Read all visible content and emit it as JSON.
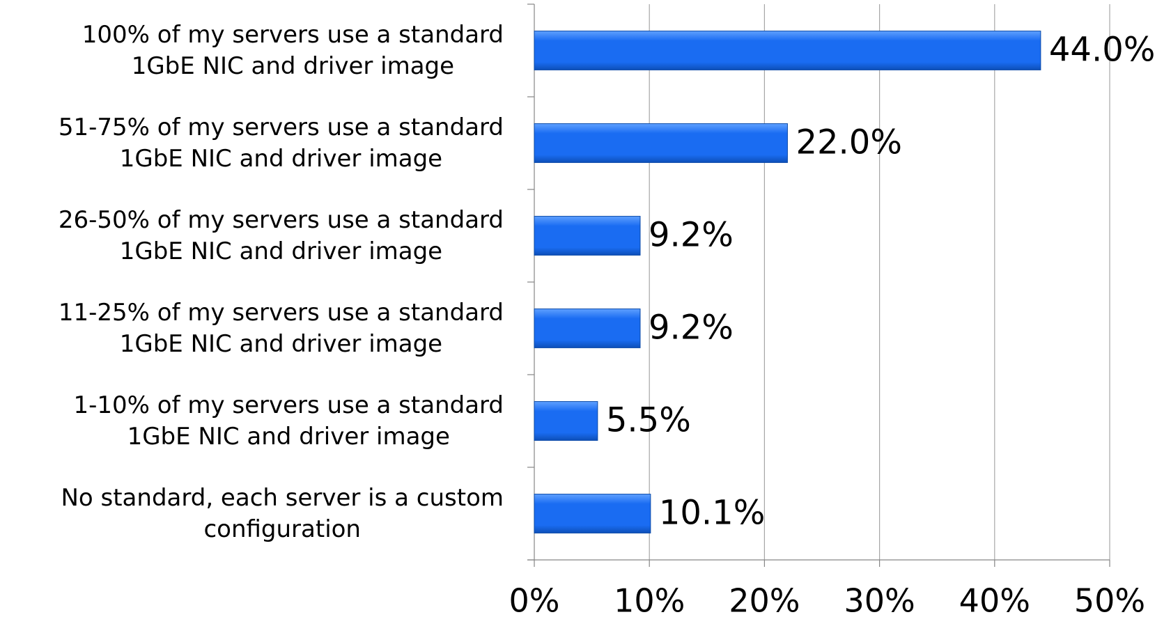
{
  "chart_data": {
    "type": "barh",
    "categories": [
      "100% of my servers use a standard\n1GbE NIC and driver image",
      "51-75% of my servers use a standard\n1GbE NIC and driver image",
      "26-50% of my servers use a standard\n1GbE NIC and driver image",
      "11-25% of my servers use a standard\n1GbE NIC and driver image",
      "1-10% of my servers use a standard\n1GbE NIC and driver image",
      "No standard, each server is a custom\nconfiguration"
    ],
    "values": [
      44,
      22,
      9.2,
      9.2,
      5.5,
      10.1
    ],
    "value_labels": [
      "44.0%",
      "22.0%",
      "9.2%",
      "9.2%",
      "5.5%",
      "10.1%"
    ],
    "color": "#1a6cf2",
    "xlim": [
      0,
      50
    ],
    "xticks": [
      {
        "value": 0,
        "label": "0%"
      },
      {
        "value": 10,
        "label": "10%"
      },
      {
        "value": 20,
        "label": "20%"
      },
      {
        "value": 30,
        "label": "30%"
      },
      {
        "value": 40,
        "label": "40%"
      },
      {
        "value": 50,
        "label": "50%"
      }
    ],
    "grid": true
  }
}
